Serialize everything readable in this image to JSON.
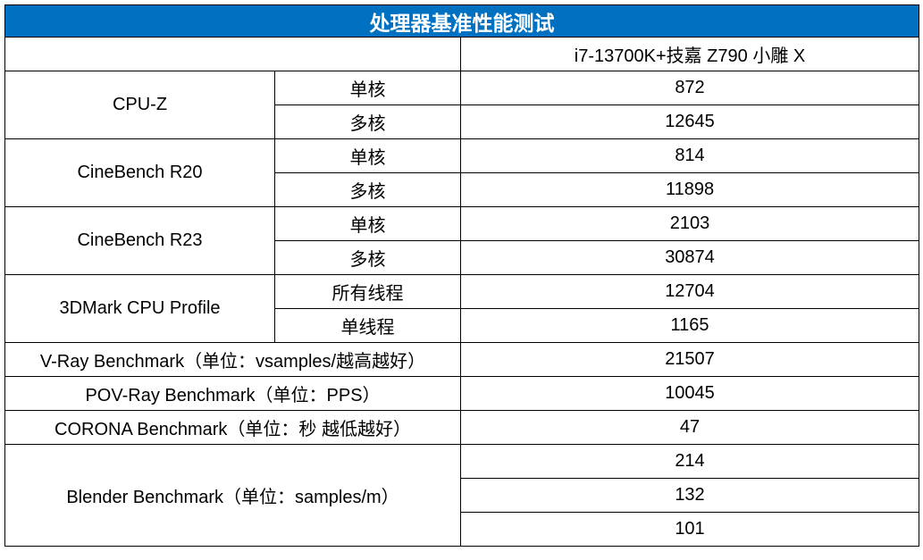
{
  "title": "处理器基准性能测试",
  "header": {
    "blank": "",
    "config": "i7-13700K+技嘉 Z790 小雕 X"
  },
  "rows": {
    "cpuz": {
      "name": "CPU-Z",
      "single_label": "单核",
      "single": "872",
      "multi_label": "多核",
      "multi": "12645"
    },
    "r20": {
      "name": "CineBench R20",
      "single_label": "单核",
      "single": "814",
      "multi_label": "多核",
      "multi": "11898"
    },
    "r23": {
      "name": "CineBench R23",
      "single_label": "单核",
      "single": "2103",
      "multi_label": "多核",
      "multi": "30874"
    },
    "tdmark": {
      "name": "3DMark CPU Profile",
      "all_label": "所有线程",
      "all": "12704",
      "single_label": "单线程",
      "single": "1165"
    },
    "vray": {
      "name": "V-Ray Benchmark（单位：vsamples/越高越好）",
      "value": "21507"
    },
    "povray": {
      "name": "POV-Ray Benchmark（单位：PPS）",
      "value": "10045"
    },
    "corona": {
      "name": "CORONA Benchmark（单位：秒 越低越好）",
      "value": "47"
    },
    "blender": {
      "name": "Blender Benchmark（单位：samples/m）",
      "values": [
        "214",
        "132",
        "101"
      ]
    }
  },
  "colors": {
    "title_bg": "#0070c0",
    "title_text": "#ffffff"
  }
}
